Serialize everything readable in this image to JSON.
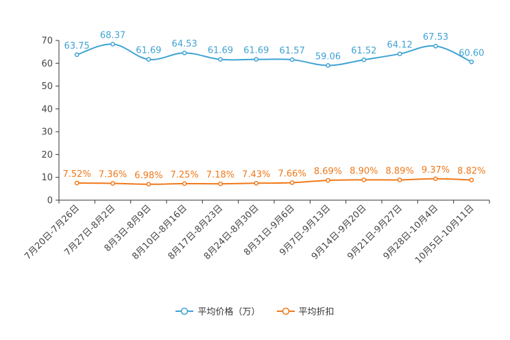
{
  "chart_data": {
    "type": "line",
    "title": "",
    "xlabel": "",
    "ylabel": "",
    "ylim": [
      0,
      70
    ],
    "yticks": [
      0,
      10,
      20,
      30,
      40,
      50,
      60,
      70
    ],
    "ytick_labels": [
      "0",
      "10",
      "20",
      "30",
      "40",
      "50",
      "60",
      "70"
    ],
    "grid": false,
    "legend_position": "bottom-center",
    "categories": [
      "7月20日-7月26日",
      "7月27日-8月2日",
      "8月3日-8月9日",
      "8月10日-8月16日",
      "8月17日-8月23日",
      "8月24日-8月30日",
      "8月31日-9月6日",
      "9月7日-9月13日",
      "9月14日-9月20日",
      "9月21日-9月27日",
      "9月28日-10月4日",
      "10月5日-10月11日"
    ],
    "series": [
      {
        "name": "平均价格（万）",
        "color": "#3ea2d4",
        "values": [
          63.75,
          68.37,
          61.69,
          64.53,
          61.69,
          61.69,
          61.57,
          59.06,
          61.52,
          64.12,
          67.53,
          60.6
        ],
        "labels": [
          "63.75",
          "68.37",
          "61.69",
          "64.53",
          "61.69",
          "61.69",
          "61.57",
          "59.06",
          "61.52",
          "64.12",
          "67.53",
          "60.60"
        ]
      },
      {
        "name": "平均折扣",
        "color": "#f07818",
        "values": [
          7.52,
          7.36,
          6.98,
          7.25,
          7.18,
          7.43,
          7.66,
          8.69,
          8.9,
          8.89,
          9.37,
          8.82
        ],
        "labels": [
          "7.52%",
          "7.36%",
          "6.98%",
          "7.25%",
          "7.18%",
          "7.43%",
          "7.66%",
          "8.69%",
          "8.90%",
          "8.89%",
          "9.37%",
          "8.82%"
        ]
      }
    ]
  }
}
